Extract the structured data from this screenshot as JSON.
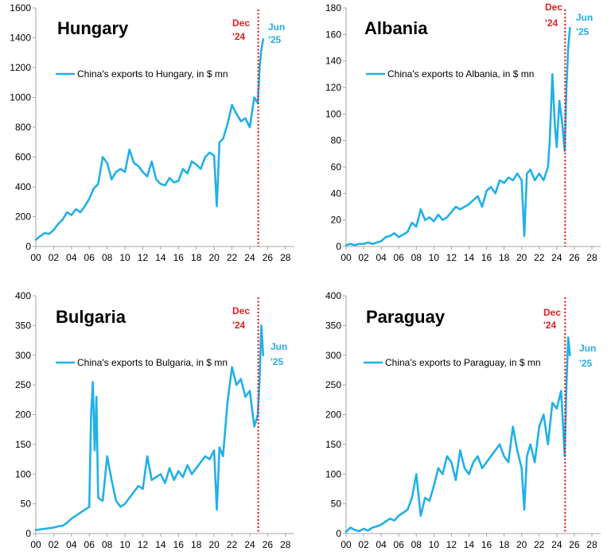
{
  "colors": {
    "series": "#21B0E8",
    "marker": "#E02020",
    "axis": "#A6A6A6"
  },
  "chart_data": [
    {
      "type": "line",
      "title": "Hungary",
      "legend": "China's exports to Hungary, in $ mn",
      "ylim": [
        0,
        1600
      ],
      "yticks": [
        0,
        200,
        400,
        600,
        800,
        1000,
        1200,
        1400,
        1600
      ],
      "xlim": [
        0,
        29
      ],
      "xticks": [
        0,
        2,
        4,
        6,
        8,
        10,
        12,
        14,
        16,
        18,
        20,
        22,
        24,
        26,
        28
      ],
      "xticklabels": [
        "00",
        "02",
        "04",
        "06",
        "08",
        "10",
        "12",
        "14",
        "16",
        "18",
        "20",
        "22",
        "24",
        "26",
        "28"
      ],
      "marker_x": 24.95,
      "marker_top": "Dec",
      "marker_bottom": "'24",
      "end_top": "Jun",
      "end_bottom": "'25",
      "series": [
        {
          "name": "China's exports to Hungary, in $ mn",
          "x": [
            0,
            0.5,
            1,
            1.5,
            2,
            2.5,
            3,
            3.5,
            4,
            4.5,
            5,
            5.5,
            6,
            6.5,
            7,
            7.5,
            8,
            8.5,
            9,
            9.5,
            10,
            10.5,
            11,
            11.5,
            12,
            12.5,
            13,
            13.5,
            14,
            14.5,
            15,
            15.5,
            16,
            16.5,
            17,
            17.5,
            18,
            18.5,
            19,
            19.5,
            20,
            20.3,
            20.6,
            21,
            21.5,
            22,
            22.5,
            23,
            23.5,
            24,
            24.5,
            24.9,
            25.1,
            25.3,
            25.5
          ],
          "values": [
            45,
            70,
            90,
            85,
            110,
            150,
            180,
            230,
            210,
            250,
            230,
            270,
            320,
            390,
            420,
            600,
            560,
            450,
            500,
            520,
            500,
            650,
            560,
            540,
            500,
            470,
            570,
            450,
            420,
            410,
            460,
            430,
            440,
            520,
            490,
            570,
            550,
            520,
            600,
            630,
            610,
            270,
            700,
            720,
            820,
            950,
            890,
            840,
            860,
            800,
            1000,
            960,
            1200,
            1320,
            1390
          ]
        }
      ]
    },
    {
      "type": "line",
      "title": "Albania",
      "legend": "China's exports to Albania, in $ mn",
      "ylim": [
        0,
        180
      ],
      "yticks": [
        0,
        20,
        40,
        60,
        80,
        100,
        120,
        140,
        160,
        180
      ],
      "xlim": [
        0,
        29
      ],
      "xticks": [
        0,
        2,
        4,
        6,
        8,
        10,
        12,
        14,
        16,
        18,
        20,
        22,
        24,
        26,
        28
      ],
      "xticklabels": [
        "00",
        "02",
        "04",
        "06",
        "08",
        "10",
        "12",
        "14",
        "16",
        "18",
        "20",
        "22",
        "24",
        "26",
        "28"
      ],
      "marker_x": 24.95,
      "marker_top": "Dec",
      "marker_bottom": "'24",
      "end_top": "Jun",
      "end_bottom": "'25",
      "series": [
        {
          "name": "China's exports to Albania, in $ mn",
          "x": [
            0,
            0.5,
            1,
            1.5,
            2,
            2.5,
            3,
            3.5,
            4,
            4.5,
            5,
            5.5,
            6,
            6.5,
            7,
            7.5,
            8,
            8.5,
            9,
            9.5,
            10,
            10.5,
            11,
            11.5,
            12,
            12.5,
            13,
            13.5,
            14,
            14.5,
            15,
            15.5,
            16,
            16.5,
            17,
            17.5,
            18,
            18.5,
            19,
            19.5,
            20,
            20.3,
            20.6,
            21,
            21.5,
            22,
            22.5,
            23,
            23.2,
            23.5,
            23.8,
            24,
            24.3,
            24.6,
            24.9,
            25.1,
            25.3,
            25.5
          ],
          "values": [
            1,
            2,
            1,
            2,
            2,
            3,
            2,
            3,
            4,
            7,
            8,
            10,
            7,
            9,
            11,
            18,
            15,
            28,
            20,
            22,
            19,
            24,
            20,
            22,
            26,
            30,
            28,
            30,
            32,
            35,
            38,
            30,
            42,
            45,
            40,
            50,
            48,
            52,
            50,
            55,
            50,
            8,
            55,
            58,
            50,
            55,
            50,
            60,
            80,
            130,
            90,
            75,
            110,
            95,
            72,
            120,
            150,
            165
          ]
        }
      ]
    },
    {
      "type": "line",
      "title": "Bulgaria",
      "legend": "China's exports to Bulgaria, in $ mn",
      "ylim": [
        0,
        400
      ],
      "yticks": [
        0,
        50,
        100,
        150,
        200,
        250,
        300,
        350,
        400
      ],
      "xlim": [
        0,
        29
      ],
      "xticks": [
        0,
        2,
        4,
        6,
        8,
        10,
        12,
        14,
        16,
        18,
        20,
        22,
        24,
        26,
        28
      ],
      "xticklabels": [
        "00",
        "02",
        "04",
        "06",
        "08",
        "10",
        "12",
        "14",
        "16",
        "18",
        "20",
        "22",
        "24",
        "26",
        "28"
      ],
      "marker_x": 24.95,
      "marker_top": "Dec",
      "marker_bottom": "'24",
      "end_top": "Jun",
      "end_bottom": "'25",
      "series": [
        {
          "name": "China's exports to Bulgaria, in $ mn",
          "x": [
            0,
            0.5,
            1,
            1.5,
            2,
            2.5,
            3,
            3.5,
            4,
            4.5,
            5,
            5.5,
            6,
            6.2,
            6.4,
            6.6,
            6.8,
            7,
            7.5,
            8,
            8.5,
            9,
            9.5,
            10,
            10.5,
            11,
            11.5,
            12,
            12.5,
            13,
            13.5,
            14,
            14.5,
            15,
            15.5,
            16,
            16.5,
            17,
            17.5,
            18,
            18.5,
            19,
            19.5,
            20,
            20.3,
            20.6,
            21,
            21.5,
            22,
            22.5,
            23,
            23.5,
            24,
            24.5,
            24.9,
            25.1,
            25.3,
            25.5
          ],
          "values": [
            6,
            7,
            8,
            9,
            10,
            12,
            13,
            18,
            25,
            30,
            35,
            40,
            45,
            200,
            255,
            140,
            230,
            60,
            55,
            130,
            90,
            55,
            45,
            50,
            60,
            70,
            80,
            75,
            130,
            90,
            95,
            100,
            85,
            110,
            90,
            105,
            95,
            115,
            100,
            110,
            120,
            130,
            125,
            140,
            40,
            145,
            130,
            220,
            280,
            250,
            260,
            230,
            240,
            180,
            200,
            260,
            350,
            300
          ]
        }
      ]
    },
    {
      "type": "line",
      "title": "Paraguay",
      "legend": "China's exports to Paraguay, in $ mn",
      "ylim": [
        0,
        400
      ],
      "yticks": [
        0,
        50,
        100,
        150,
        200,
        250,
        300,
        350,
        400
      ],
      "xlim": [
        0,
        29
      ],
      "xticks": [
        0,
        2,
        4,
        6,
        8,
        10,
        12,
        14,
        16,
        18,
        20,
        22,
        24,
        26,
        28
      ],
      "xticklabels": [
        "00",
        "02",
        "04",
        "06",
        "08",
        "10",
        "12",
        "14",
        "16",
        "18",
        "20",
        "22",
        "24",
        "26",
        "28"
      ],
      "marker_x": 24.95,
      "marker_top": "Dec",
      "marker_bottom": "'24",
      "end_top": "Jun",
      "end_bottom": "'25",
      "series": [
        {
          "name": "China's exports to Paraguay, in $ mn",
          "x": [
            0,
            0.5,
            1,
            1.5,
            2,
            2.5,
            3,
            3.5,
            4,
            4.5,
            5,
            5.5,
            6,
            6.5,
            7,
            7.5,
            8,
            8.5,
            9,
            9.5,
            10,
            10.5,
            11,
            11.5,
            12,
            12.5,
            13,
            13.5,
            14,
            14.5,
            15,
            15.5,
            16,
            16.5,
            17,
            17.5,
            18,
            18.5,
            19,
            19.5,
            20,
            20.3,
            20.6,
            21,
            21.5,
            22,
            22.5,
            23,
            23.5,
            24,
            24.5,
            24.9,
            25.1,
            25.3,
            25.5
          ],
          "values": [
            3,
            10,
            6,
            4,
            8,
            5,
            10,
            12,
            15,
            20,
            25,
            22,
            30,
            35,
            40,
            60,
            100,
            30,
            60,
            55,
            80,
            110,
            100,
            130,
            120,
            90,
            140,
            110,
            100,
            120,
            130,
            110,
            120,
            130,
            140,
            150,
            130,
            120,
            180,
            140,
            110,
            40,
            130,
            150,
            120,
            180,
            200,
            150,
            220,
            210,
            240,
            130,
            250,
            330,
            300
          ]
        }
      ]
    }
  ]
}
